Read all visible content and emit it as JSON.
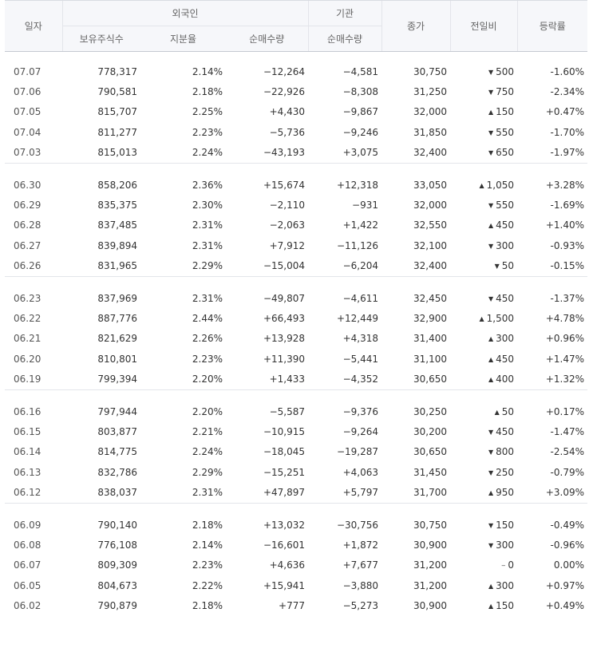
{
  "headers": {
    "date": "일자",
    "foreign": "외국인",
    "foreign_holdings": "보유주식수",
    "foreign_ratio": "지분율",
    "foreign_net": "순매수량",
    "institution": "기관",
    "institution_net": "순매수량",
    "close": "종가",
    "change": "전일비",
    "rate": "등락률"
  },
  "icons": {
    "up": "triangle-up-icon",
    "down": "triangle-down-icon",
    "flat": "dash-icon"
  },
  "colors": {
    "up": "#e22b2b",
    "down": "#1f5ec8",
    "flat": "#333333"
  },
  "groups": [
    {
      "rows": [
        {
          "date": "07.07",
          "holdings": "778,317",
          "ratio": "2.14%",
          "foreign_net": "−12,264",
          "inst_net": "−4,581",
          "close": "30,750",
          "change": "500",
          "rate": "-1.60%",
          "dir": "down",
          "fdir": "down",
          "idir": "down"
        },
        {
          "date": "07.06",
          "holdings": "790,581",
          "ratio": "2.18%",
          "foreign_net": "−22,926",
          "inst_net": "−8,308",
          "close": "31,250",
          "change": "750",
          "rate": "-2.34%",
          "dir": "down",
          "fdir": "down",
          "idir": "down"
        },
        {
          "date": "07.05",
          "holdings": "815,707",
          "ratio": "2.25%",
          "foreign_net": "+4,430",
          "inst_net": "−9,867",
          "close": "32,000",
          "change": "150",
          "rate": "+0.47%",
          "dir": "up",
          "fdir": "up",
          "idir": "down"
        },
        {
          "date": "07.04",
          "holdings": "811,277",
          "ratio": "2.23%",
          "foreign_net": "−5,736",
          "inst_net": "−9,246",
          "close": "31,850",
          "change": "550",
          "rate": "-1.70%",
          "dir": "down",
          "fdir": "down",
          "idir": "down"
        },
        {
          "date": "07.03",
          "holdings": "815,013",
          "ratio": "2.24%",
          "foreign_net": "−43,193",
          "inst_net": "+3,075",
          "close": "32,400",
          "change": "650",
          "rate": "-1.97%",
          "dir": "down",
          "fdir": "down",
          "idir": "up"
        }
      ]
    },
    {
      "rows": [
        {
          "date": "06.30",
          "holdings": "858,206",
          "ratio": "2.36%",
          "foreign_net": "+15,674",
          "inst_net": "+12,318",
          "close": "33,050",
          "change": "1,050",
          "rate": "+3.28%",
          "dir": "up",
          "fdir": "up",
          "idir": "up"
        },
        {
          "date": "06.29",
          "holdings": "835,375",
          "ratio": "2.30%",
          "foreign_net": "−2,110",
          "inst_net": "−931",
          "close": "32,000",
          "change": "550",
          "rate": "-1.69%",
          "dir": "down",
          "fdir": "down",
          "idir": "down"
        },
        {
          "date": "06.28",
          "holdings": "837,485",
          "ratio": "2.31%",
          "foreign_net": "−2,063",
          "inst_net": "+1,422",
          "close": "32,550",
          "change": "450",
          "rate": "+1.40%",
          "dir": "up",
          "fdir": "down",
          "idir": "up"
        },
        {
          "date": "06.27",
          "holdings": "839,894",
          "ratio": "2.31%",
          "foreign_net": "+7,912",
          "inst_net": "−11,126",
          "close": "32,100",
          "change": "300",
          "rate": "-0.93%",
          "dir": "down",
          "fdir": "up",
          "idir": "down"
        },
        {
          "date": "06.26",
          "holdings": "831,965",
          "ratio": "2.29%",
          "foreign_net": "−15,004",
          "inst_net": "−6,204",
          "close": "32,400",
          "change": "50",
          "rate": "-0.15%",
          "dir": "down",
          "fdir": "down",
          "idir": "down"
        }
      ]
    },
    {
      "rows": [
        {
          "date": "06.23",
          "holdings": "837,969",
          "ratio": "2.31%",
          "foreign_net": "−49,807",
          "inst_net": "−4,611",
          "close": "32,450",
          "change": "450",
          "rate": "-1.37%",
          "dir": "down",
          "fdir": "down",
          "idir": "down"
        },
        {
          "date": "06.22",
          "holdings": "887,776",
          "ratio": "2.44%",
          "foreign_net": "+66,493",
          "inst_net": "+12,449",
          "close": "32,900",
          "change": "1,500",
          "rate": "+4.78%",
          "dir": "up",
          "fdir": "up",
          "idir": "up"
        },
        {
          "date": "06.21",
          "holdings": "821,629",
          "ratio": "2.26%",
          "foreign_net": "+13,928",
          "inst_net": "+4,318",
          "close": "31,400",
          "change": "300",
          "rate": "+0.96%",
          "dir": "up",
          "fdir": "up",
          "idir": "up"
        },
        {
          "date": "06.20",
          "holdings": "810,801",
          "ratio": "2.23%",
          "foreign_net": "+11,390",
          "inst_net": "−5,441",
          "close": "31,100",
          "change": "450",
          "rate": "+1.47%",
          "dir": "up",
          "fdir": "up",
          "idir": "down"
        },
        {
          "date": "06.19",
          "holdings": "799,394",
          "ratio": "2.20%",
          "foreign_net": "+1,433",
          "inst_net": "−4,352",
          "close": "30,650",
          "change": "400",
          "rate": "+1.32%",
          "dir": "up",
          "fdir": "up",
          "idir": "down"
        }
      ]
    },
    {
      "rows": [
        {
          "date": "06.16",
          "holdings": "797,944",
          "ratio": "2.20%",
          "foreign_net": "−5,587",
          "inst_net": "−9,376",
          "close": "30,250",
          "change": "50",
          "rate": "+0.17%",
          "dir": "up",
          "fdir": "down",
          "idir": "down"
        },
        {
          "date": "06.15",
          "holdings": "803,877",
          "ratio": "2.21%",
          "foreign_net": "−10,915",
          "inst_net": "−9,264",
          "close": "30,200",
          "change": "450",
          "rate": "-1.47%",
          "dir": "down",
          "fdir": "down",
          "idir": "down"
        },
        {
          "date": "06.14",
          "holdings": "814,775",
          "ratio": "2.24%",
          "foreign_net": "−18,045",
          "inst_net": "−19,287",
          "close": "30,650",
          "change": "800",
          "rate": "-2.54%",
          "dir": "down",
          "fdir": "down",
          "idir": "down"
        },
        {
          "date": "06.13",
          "holdings": "832,786",
          "ratio": "2.29%",
          "foreign_net": "−15,251",
          "inst_net": "+4,063",
          "close": "31,450",
          "change": "250",
          "rate": "-0.79%",
          "dir": "down",
          "fdir": "down",
          "idir": "up"
        },
        {
          "date": "06.12",
          "holdings": "838,037",
          "ratio": "2.31%",
          "foreign_net": "+47,897",
          "inst_net": "+5,797",
          "close": "31,700",
          "change": "950",
          "rate": "+3.09%",
          "dir": "up",
          "fdir": "up",
          "idir": "up"
        }
      ]
    },
    {
      "rows": [
        {
          "date": "06.09",
          "holdings": "790,140",
          "ratio": "2.18%",
          "foreign_net": "+13,032",
          "inst_net": "−30,756",
          "close": "30,750",
          "change": "150",
          "rate": "-0.49%",
          "dir": "down",
          "fdir": "up",
          "idir": "down"
        },
        {
          "date": "06.08",
          "holdings": "776,108",
          "ratio": "2.14%",
          "foreign_net": "−16,601",
          "inst_net": "+1,872",
          "close": "30,900",
          "change": "300",
          "rate": "-0.96%",
          "dir": "down",
          "fdir": "down",
          "idir": "up"
        },
        {
          "date": "06.07",
          "holdings": "809,309",
          "ratio": "2.23%",
          "foreign_net": "+4,636",
          "inst_net": "+7,677",
          "close": "31,200",
          "change": "0",
          "rate": "0.00%",
          "dir": "flat",
          "fdir": "up",
          "idir": "up"
        },
        {
          "date": "06.05",
          "holdings": "804,673",
          "ratio": "2.22%",
          "foreign_net": "+15,941",
          "inst_net": "−3,880",
          "close": "31,200",
          "change": "300",
          "rate": "+0.97%",
          "dir": "up",
          "fdir": "up",
          "idir": "down"
        },
        {
          "date": "06.02",
          "holdings": "790,879",
          "ratio": "2.18%",
          "foreign_net": "+777",
          "inst_net": "−5,273",
          "close": "30,900",
          "change": "150",
          "rate": "+0.49%",
          "dir": "up",
          "fdir": "up",
          "idir": "down"
        }
      ]
    }
  ]
}
